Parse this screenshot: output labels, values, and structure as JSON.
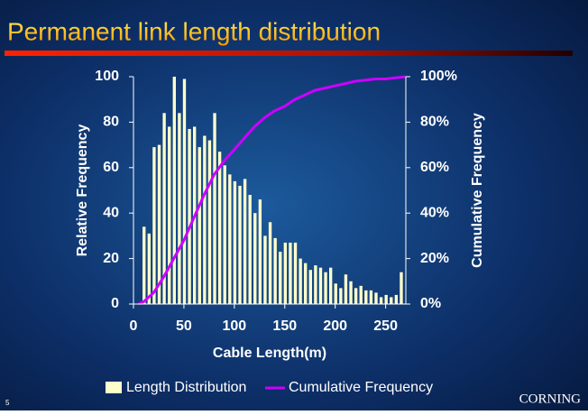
{
  "chart_data": {
    "type": "histogram",
    "title": "Permanent link length distribution",
    "x_label": "Cable Length(m)",
    "y_label": "Relative Frequency",
    "y2_label": "Cumulative Frequency",
    "bins": [
      8,
      13,
      18,
      23,
      28,
      33,
      38,
      43,
      48,
      53,
      58,
      63,
      68,
      73,
      78,
      83,
      88,
      93,
      98,
      103,
      108,
      113,
      118,
      123,
      128,
      133,
      138,
      143,
      148,
      153,
      158,
      163,
      168,
      173,
      178,
      183,
      188,
      193,
      198,
      203,
      208,
      213,
      218,
      223,
      228,
      233,
      238,
      243,
      248,
      253,
      258,
      263,
      268
    ],
    "series": [
      {
        "name": "Length Distribution",
        "color": "#ffffcc",
        "values": [
          34,
          31,
          69,
          70,
          84,
          78,
          100,
          84,
          99,
          77,
          78,
          69,
          74,
          72,
          84,
          67,
          61,
          57,
          54,
          52,
          55,
          48,
          40,
          46,
          30,
          36,
          29,
          23,
          27,
          27,
          27,
          20,
          18,
          15,
          17,
          16,
          14,
          16,
          9,
          7,
          13,
          10,
          7,
          8,
          6,
          6,
          5,
          3,
          4,
          3,
          4,
          14
        ]
      },
      {
        "name": "Cumulative Frequency",
        "color": "#cc00ff",
        "type": "line",
        "axis": "y2",
        "x": [
          5,
          10,
          20,
          30,
          40,
          50,
          60,
          70,
          80,
          90,
          100,
          110,
          120,
          130,
          140,
          150,
          160,
          170,
          180,
          190,
          200,
          210,
          220,
          230,
          240,
          250,
          260,
          270
        ],
        "values": [
          0,
          1,
          5,
          12,
          20,
          28,
          38,
          48,
          57,
          63,
          68,
          73,
          78,
          82,
          85,
          87,
          90,
          92,
          94,
          95,
          96,
          97,
          98,
          98.5,
          99,
          99,
          99.5,
          100
        ]
      }
    ],
    "xlim": [
      0,
      270
    ],
    "xticks": [
      0,
      50,
      100,
      150,
      200,
      250
    ],
    "ylim": [
      0,
      100
    ],
    "yticks": [
      0,
      20,
      40,
      60,
      80,
      100
    ],
    "y2lim": [
      0,
      100
    ],
    "y2ticks": [
      {
        "value": 0,
        "label": "0%"
      },
      {
        "value": 20,
        "label": "20%"
      },
      {
        "value": 40,
        "label": "40%"
      },
      {
        "value": 60,
        "label": "60%"
      },
      {
        "value": 80,
        "label": "80%"
      },
      {
        "value": 100,
        "label": "100%"
      }
    ],
    "legend": "bottom"
  },
  "slide": {
    "page_number": "5",
    "logo": "CORNING"
  }
}
